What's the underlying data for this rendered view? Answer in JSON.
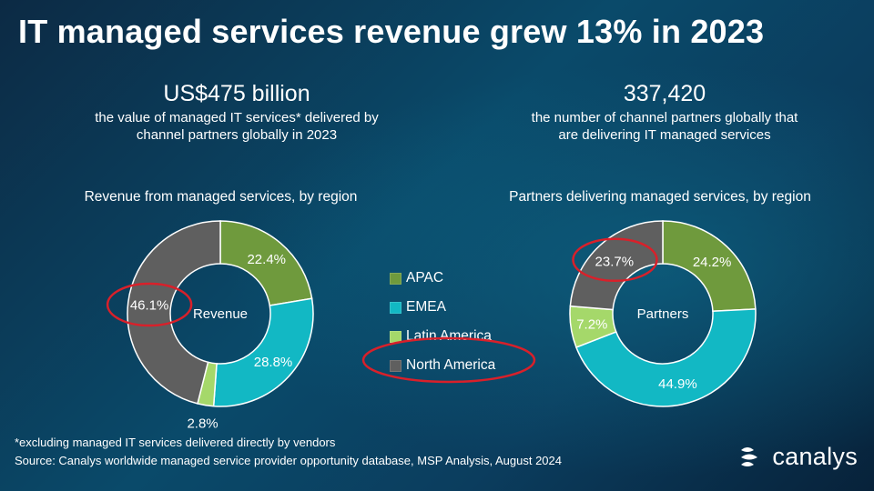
{
  "title": "IT managed services revenue grew 13% in 2023",
  "stats": {
    "revenue": {
      "value": "US$475 billion",
      "line1": "the value of managed IT services* delivered by",
      "line2": "channel partners globally in 2023"
    },
    "partners": {
      "value": "337,420",
      "line1": "the number of channel partners globally that",
      "line2": "are delivering IT managed services"
    }
  },
  "colors": {
    "APAC": "#6f9a3d",
    "EMEA": "#12b8c4",
    "Latin America": "#a5d86a",
    "North America": "#5f5f5f",
    "highlight": "#d9202a"
  },
  "chart_data": [
    {
      "type": "pie",
      "variant": "donut",
      "title": "Revenue from managed services, by region",
      "center_label": "Revenue",
      "categories": [
        "APAC",
        "EMEA",
        "Latin America",
        "North America"
      ],
      "values": [
        22.4,
        28.8,
        2.8,
        46.1
      ],
      "labels": [
        "22.4%",
        "28.8%",
        "2.8%",
        "46.1%"
      ],
      "highlighted": "North America"
    },
    {
      "type": "pie",
      "variant": "donut",
      "title": "Partners delivering managed services, by region",
      "center_label": "Partners",
      "categories": [
        "APAC",
        "EMEA",
        "Latin America",
        "North America"
      ],
      "values": [
        24.2,
        44.9,
        7.2,
        23.7
      ],
      "labels": [
        "24.2%",
        "44.9%",
        "7.2%",
        "23.7%"
      ],
      "highlighted": "North America"
    }
  ],
  "legend": [
    "APAC",
    "EMEA",
    "Latin America",
    "North America"
  ],
  "legend_highlighted": "North America",
  "footnotes": {
    "line1": "*excluding managed IT services delivered directly by vendors",
    "line2": "Source: Canalys worldwide managed service provider opportunity database, MSP Analysis, August 2024"
  },
  "brand": {
    "name": "canalys",
    "icon": "canalys-logo-icon"
  }
}
